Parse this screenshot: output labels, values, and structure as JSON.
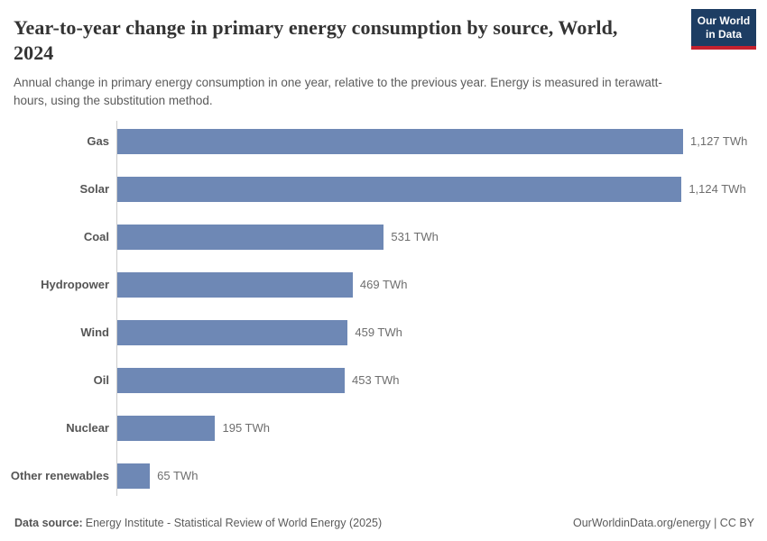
{
  "header": {
    "title": "Year-to-year change in primary energy consumption by source, World, 2024",
    "subtitle": "Annual change in primary energy consumption in one year, relative to the previous year. Energy is measured in terawatt-hours, using the substitution method.",
    "logo": {
      "line1": "Our World",
      "line2": "in Data"
    }
  },
  "chart_data": {
    "type": "bar",
    "orientation": "horizontal",
    "title": "Year-to-year change in primary energy consumption by source, World, 2024",
    "subtitle": "Annual change in primary energy consumption in one year, relative to the previous year. Energy is measured in terawatt-hours, using the substitution method.",
    "categories": [
      "Gas",
      "Solar",
      "Coal",
      "Hydropower",
      "Wind",
      "Oil",
      "Nuclear",
      "Other renewables"
    ],
    "values": [
      1127,
      1124,
      531,
      469,
      459,
      453,
      195,
      65
    ],
    "value_labels": [
      "1,127 TWh",
      "1,124 TWh",
      "531 TWh",
      "469 TWh",
      "459 TWh",
      "453 TWh",
      "195 TWh",
      "65 TWh"
    ],
    "unit": "TWh",
    "xlabel": "",
    "ylabel": "",
    "xlim": [
      0,
      1127
    ],
    "grid": false,
    "legend": "none",
    "bar_color": "#6e88b5"
  },
  "footer": {
    "datasource_label": "Data source:",
    "datasource_text": "Energy Institute - Statistical Review of World Energy (2025)",
    "link_text": "OurWorldinData.org/energy | CC BY"
  },
  "colors": {
    "bar": "#6e88b5",
    "axis_line": "#cccccc",
    "title_text": "#333333",
    "subtitle_text": "#5b5b5b",
    "category_label": "#555555",
    "value_label": "#6e6e6e",
    "logo_background": "#1d3d63",
    "logo_stripe": "#c5212e",
    "logo_text": "#ffffff"
  }
}
